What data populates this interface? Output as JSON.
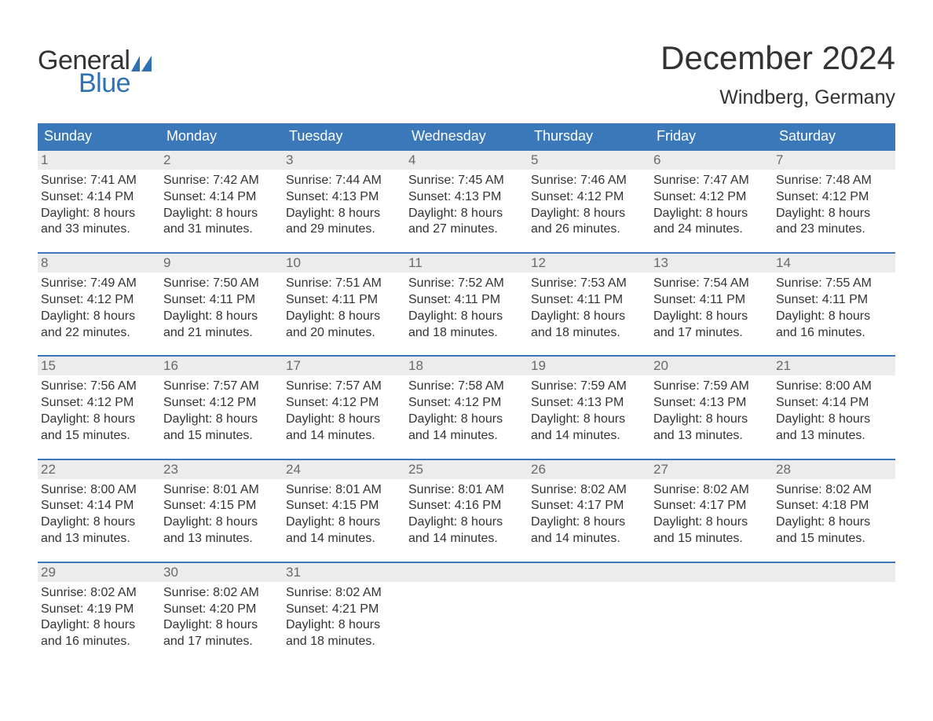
{
  "logo": {
    "word1": "General",
    "word2": "Blue",
    "sail_color": "#2e72b5",
    "text_color": "#333333"
  },
  "title": "December 2024",
  "location": "Windberg, Germany",
  "colors": {
    "header_bg": "#3a78b9",
    "header_text": "#ffffff",
    "daynum_bg": "#ececec",
    "daynum_text": "#6a6a6a",
    "body_text": "#333333",
    "row_border": "#3a78b9",
    "page_bg": "#ffffff"
  },
  "typography": {
    "month_title_fontsize": 42,
    "location_fontsize": 25,
    "weekday_fontsize": 18,
    "daynum_fontsize": 17,
    "body_fontsize": 16
  },
  "weekdays": [
    "Sunday",
    "Monday",
    "Tuesday",
    "Wednesday",
    "Thursday",
    "Friday",
    "Saturday"
  ],
  "weeks": [
    [
      {
        "n": "1",
        "sunrise": "Sunrise: 7:41 AM",
        "sunset": "Sunset: 4:14 PM",
        "daylight": "Daylight: 8 hours and 33 minutes."
      },
      {
        "n": "2",
        "sunrise": "Sunrise: 7:42 AM",
        "sunset": "Sunset: 4:14 PM",
        "daylight": "Daylight: 8 hours and 31 minutes."
      },
      {
        "n": "3",
        "sunrise": "Sunrise: 7:44 AM",
        "sunset": "Sunset: 4:13 PM",
        "daylight": "Daylight: 8 hours and 29 minutes."
      },
      {
        "n": "4",
        "sunrise": "Sunrise: 7:45 AM",
        "sunset": "Sunset: 4:13 PM",
        "daylight": "Daylight: 8 hours and 27 minutes."
      },
      {
        "n": "5",
        "sunrise": "Sunrise: 7:46 AM",
        "sunset": "Sunset: 4:12 PM",
        "daylight": "Daylight: 8 hours and 26 minutes."
      },
      {
        "n": "6",
        "sunrise": "Sunrise: 7:47 AM",
        "sunset": "Sunset: 4:12 PM",
        "daylight": "Daylight: 8 hours and 24 minutes."
      },
      {
        "n": "7",
        "sunrise": "Sunrise: 7:48 AM",
        "sunset": "Sunset: 4:12 PM",
        "daylight": "Daylight: 8 hours and 23 minutes."
      }
    ],
    [
      {
        "n": "8",
        "sunrise": "Sunrise: 7:49 AM",
        "sunset": "Sunset: 4:12 PM",
        "daylight": "Daylight: 8 hours and 22 minutes."
      },
      {
        "n": "9",
        "sunrise": "Sunrise: 7:50 AM",
        "sunset": "Sunset: 4:11 PM",
        "daylight": "Daylight: 8 hours and 21 minutes."
      },
      {
        "n": "10",
        "sunrise": "Sunrise: 7:51 AM",
        "sunset": "Sunset: 4:11 PM",
        "daylight": "Daylight: 8 hours and 20 minutes."
      },
      {
        "n": "11",
        "sunrise": "Sunrise: 7:52 AM",
        "sunset": "Sunset: 4:11 PM",
        "daylight": "Daylight: 8 hours and 18 minutes."
      },
      {
        "n": "12",
        "sunrise": "Sunrise: 7:53 AM",
        "sunset": "Sunset: 4:11 PM",
        "daylight": "Daylight: 8 hours and 18 minutes."
      },
      {
        "n": "13",
        "sunrise": "Sunrise: 7:54 AM",
        "sunset": "Sunset: 4:11 PM",
        "daylight": "Daylight: 8 hours and 17 minutes."
      },
      {
        "n": "14",
        "sunrise": "Sunrise: 7:55 AM",
        "sunset": "Sunset: 4:11 PM",
        "daylight": "Daylight: 8 hours and 16 minutes."
      }
    ],
    [
      {
        "n": "15",
        "sunrise": "Sunrise: 7:56 AM",
        "sunset": "Sunset: 4:12 PM",
        "daylight": "Daylight: 8 hours and 15 minutes."
      },
      {
        "n": "16",
        "sunrise": "Sunrise: 7:57 AM",
        "sunset": "Sunset: 4:12 PM",
        "daylight": "Daylight: 8 hours and 15 minutes."
      },
      {
        "n": "17",
        "sunrise": "Sunrise: 7:57 AM",
        "sunset": "Sunset: 4:12 PM",
        "daylight": "Daylight: 8 hours and 14 minutes."
      },
      {
        "n": "18",
        "sunrise": "Sunrise: 7:58 AM",
        "sunset": "Sunset: 4:12 PM",
        "daylight": "Daylight: 8 hours and 14 minutes."
      },
      {
        "n": "19",
        "sunrise": "Sunrise: 7:59 AM",
        "sunset": "Sunset: 4:13 PM",
        "daylight": "Daylight: 8 hours and 14 minutes."
      },
      {
        "n": "20",
        "sunrise": "Sunrise: 7:59 AM",
        "sunset": "Sunset: 4:13 PM",
        "daylight": "Daylight: 8 hours and 13 minutes."
      },
      {
        "n": "21",
        "sunrise": "Sunrise: 8:00 AM",
        "sunset": "Sunset: 4:14 PM",
        "daylight": "Daylight: 8 hours and 13 minutes."
      }
    ],
    [
      {
        "n": "22",
        "sunrise": "Sunrise: 8:00 AM",
        "sunset": "Sunset: 4:14 PM",
        "daylight": "Daylight: 8 hours and 13 minutes."
      },
      {
        "n": "23",
        "sunrise": "Sunrise: 8:01 AM",
        "sunset": "Sunset: 4:15 PM",
        "daylight": "Daylight: 8 hours and 13 minutes."
      },
      {
        "n": "24",
        "sunrise": "Sunrise: 8:01 AM",
        "sunset": "Sunset: 4:15 PM",
        "daylight": "Daylight: 8 hours and 14 minutes."
      },
      {
        "n": "25",
        "sunrise": "Sunrise: 8:01 AM",
        "sunset": "Sunset: 4:16 PM",
        "daylight": "Daylight: 8 hours and 14 minutes."
      },
      {
        "n": "26",
        "sunrise": "Sunrise: 8:02 AM",
        "sunset": "Sunset: 4:17 PM",
        "daylight": "Daylight: 8 hours and 14 minutes."
      },
      {
        "n": "27",
        "sunrise": "Sunrise: 8:02 AM",
        "sunset": "Sunset: 4:17 PM",
        "daylight": "Daylight: 8 hours and 15 minutes."
      },
      {
        "n": "28",
        "sunrise": "Sunrise: 8:02 AM",
        "sunset": "Sunset: 4:18 PM",
        "daylight": "Daylight: 8 hours and 15 minutes."
      }
    ],
    [
      {
        "n": "29",
        "sunrise": "Sunrise: 8:02 AM",
        "sunset": "Sunset: 4:19 PM",
        "daylight": "Daylight: 8 hours and 16 minutes."
      },
      {
        "n": "30",
        "sunrise": "Sunrise: 8:02 AM",
        "sunset": "Sunset: 4:20 PM",
        "daylight": "Daylight: 8 hours and 17 minutes."
      },
      {
        "n": "31",
        "sunrise": "Sunrise: 8:02 AM",
        "sunset": "Sunset: 4:21 PM",
        "daylight": "Daylight: 8 hours and 18 minutes."
      },
      null,
      null,
      null,
      null
    ]
  ]
}
